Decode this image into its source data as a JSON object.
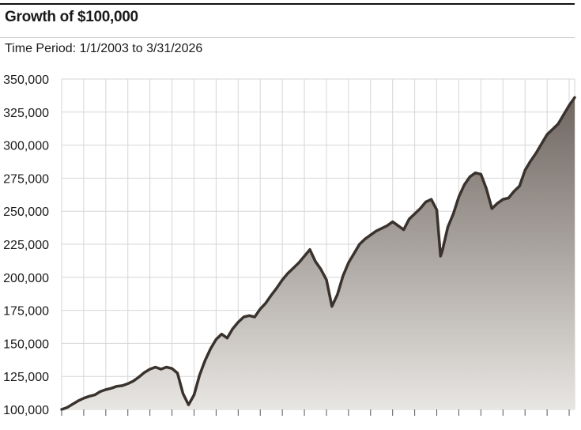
{
  "header": {
    "title": "Growth of $100,000",
    "subtitle_label": "Time Period:",
    "subtitle_range": "1/1/2003 to 3/31/2026"
  },
  "colors": {
    "line": "#3a322c",
    "fill_top": "#6f6660",
    "fill_bottom": "#e8e6e3",
    "grid": "#d6d6d6"
  },
  "chart_data": {
    "type": "area",
    "title": "Growth of $100,000",
    "subtitle": "Time Period: 1/1/2003 to 3/31/2026",
    "ylim": [
      100000,
      350000
    ],
    "y_ticks": [
      100000,
      125000,
      150000,
      175000,
      200000,
      225000,
      250000,
      275000,
      300000,
      325000,
      350000
    ],
    "y_tick_labels": [
      "100,000",
      "125,000",
      "150,000",
      "175,000",
      "200,000",
      "225,000",
      "250,000",
      "275,000",
      "300,000",
      "325,000",
      "350,000"
    ],
    "x_range": [
      2003.0,
      2026.25
    ],
    "grid": true,
    "legend": "none",
    "x": [
      2003.0,
      2003.25,
      2003.5,
      2003.75,
      2004.0,
      2004.25,
      2004.5,
      2004.75,
      2005.0,
      2005.25,
      2005.5,
      2005.75,
      2006.0,
      2006.25,
      2006.5,
      2006.75,
      2007.0,
      2007.25,
      2007.5,
      2007.75,
      2008.0,
      2008.25,
      2008.5,
      2008.75,
      2009.0,
      2009.25,
      2009.5,
      2009.75,
      2010.0,
      2010.25,
      2010.5,
      2010.75,
      2011.0,
      2011.25,
      2011.5,
      2011.75,
      2012.0,
      2012.25,
      2012.5,
      2012.75,
      2013.0,
      2013.25,
      2013.5,
      2013.75,
      2014.0,
      2014.25,
      2014.5,
      2014.75,
      2015.0,
      2015.25,
      2015.5,
      2015.75,
      2016.0,
      2016.25,
      2016.5,
      2016.75,
      2017.0,
      2017.25,
      2017.5,
      2017.75,
      2018.0,
      2018.25,
      2018.5,
      2018.75,
      2019.0,
      2019.25,
      2019.5,
      2019.75,
      2020.0,
      2020.17,
      2020.25,
      2020.5,
      2020.75,
      2021.0,
      2021.25,
      2021.5,
      2021.75,
      2022.0,
      2022.25,
      2022.5,
      2022.75,
      2023.0,
      2023.25,
      2023.5,
      2023.75,
      2024.0,
      2024.25,
      2024.5,
      2024.75,
      2025.0,
      2025.25,
      2025.5,
      2025.75,
      2026.0,
      2026.25
    ],
    "values": [
      100000,
      101500,
      104000,
      106500,
      108500,
      110000,
      111000,
      113500,
      115000,
      116000,
      117500,
      118000,
      119500,
      121500,
      124500,
      128000,
      130500,
      132000,
      130500,
      132000,
      131000,
      127500,
      112000,
      103500,
      111000,
      126000,
      137000,
      146000,
      153000,
      157000,
      154000,
      161000,
      166000,
      170000,
      171000,
      170000,
      176000,
      180500,
      186500,
      192000,
      198000,
      203000,
      207000,
      211000,
      216000,
      221000,
      212000,
      206000,
      198000,
      178000,
      187000,
      201000,
      211000,
      218000,
      225000,
      229000,
      232000,
      235000,
      237000,
      239000,
      242000,
      239000,
      236000,
      244000,
      248000,
      252000,
      257000,
      259000,
      251000,
      216000,
      220000,
      238000,
      248000,
      261000,
      270000,
      276000,
      279000,
      278000,
      267000,
      252000,
      256000,
      259000,
      260000,
      265000,
      269000,
      281000,
      288000,
      294000,
      301000,
      308000,
      312000,
      316000,
      323000,
      330000,
      336000
    ]
  }
}
